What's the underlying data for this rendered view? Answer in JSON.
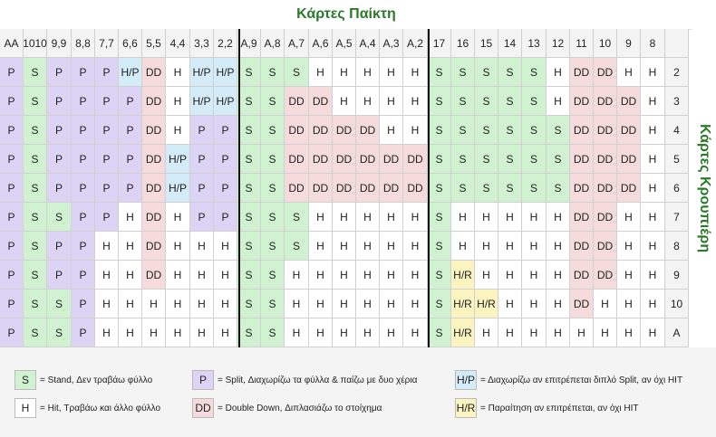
{
  "title": "Κάρτες Παίκτη",
  "side_title": "Κάρτες Κρουπιέρη",
  "player_headers": [
    "AA",
    "1010",
    "9,9",
    "8,8",
    "7,7",
    "6,6",
    "5,5",
    "4,4",
    "3,3",
    "2,2",
    "A,9",
    "A,8",
    "A,7",
    "A,6",
    "A,5",
    "A,4",
    "A,3",
    "A,2",
    "17",
    "16",
    "15",
    "14",
    "13",
    "12",
    "11",
    "10",
    "9",
    "8"
  ],
  "dealer_headers": [
    "2",
    "3",
    "4",
    "5",
    "6",
    "7",
    "8",
    "9",
    "10",
    "A"
  ],
  "rows": [
    [
      "P",
      "S",
      "P",
      "P",
      "P",
      "H/P",
      "DD",
      "H",
      "H/P",
      "H/P",
      "S",
      "S",
      "S",
      "H",
      "H",
      "H",
      "H",
      "H",
      "S",
      "S",
      "S",
      "S",
      "S",
      "H",
      "DD",
      "DD",
      "H",
      "H"
    ],
    [
      "P",
      "S",
      "P",
      "P",
      "P",
      "P",
      "DD",
      "H",
      "H/P",
      "H/P",
      "S",
      "S",
      "DD",
      "DD",
      "H",
      "H",
      "H",
      "H",
      "S",
      "S",
      "S",
      "S",
      "S",
      "H",
      "DD",
      "DD",
      "DD",
      "H"
    ],
    [
      "P",
      "S",
      "P",
      "P",
      "P",
      "P",
      "DD",
      "H",
      "P",
      "P",
      "S",
      "S",
      "DD",
      "DD",
      "DD",
      "DD",
      "H",
      "H",
      "S",
      "S",
      "S",
      "S",
      "S",
      "S",
      "DD",
      "DD",
      "DD",
      "H"
    ],
    [
      "P",
      "S",
      "P",
      "P",
      "P",
      "P",
      "DD",
      "H/P",
      "P",
      "P",
      "S",
      "S",
      "DD",
      "DD",
      "DD",
      "DD",
      "DD",
      "DD",
      "S",
      "S",
      "S",
      "S",
      "S",
      "S",
      "DD",
      "DD",
      "DD",
      "H"
    ],
    [
      "P",
      "S",
      "P",
      "P",
      "P",
      "P",
      "DD",
      "H/P",
      "P",
      "P",
      "S",
      "S",
      "DD",
      "DD",
      "DD",
      "DD",
      "DD",
      "DD",
      "S",
      "S",
      "S",
      "S",
      "S",
      "S",
      "DD",
      "DD",
      "DD",
      "H"
    ],
    [
      "P",
      "S",
      "S",
      "P",
      "P",
      "H",
      "DD",
      "H",
      "P",
      "P",
      "S",
      "S",
      "S",
      "H",
      "H",
      "H",
      "H",
      "H",
      "S",
      "H",
      "H",
      "H",
      "H",
      "H",
      "DD",
      "DD",
      "H",
      "H"
    ],
    [
      "P",
      "S",
      "P",
      "P",
      "H",
      "H",
      "DD",
      "H",
      "H",
      "H",
      "S",
      "S",
      "S",
      "H",
      "H",
      "H",
      "H",
      "H",
      "S",
      "H",
      "H",
      "H",
      "H",
      "H",
      "DD",
      "DD",
      "H",
      "H"
    ],
    [
      "P",
      "S",
      "P",
      "P",
      "H",
      "H",
      "DD",
      "H",
      "H",
      "H",
      "S",
      "S",
      "H",
      "H",
      "H",
      "H",
      "H",
      "H",
      "S",
      "H/R",
      "H",
      "H",
      "H",
      "H",
      "DD",
      "DD",
      "H",
      "H"
    ],
    [
      "P",
      "S",
      "S",
      "P",
      "H",
      "H",
      "H",
      "H",
      "H",
      "H",
      "S",
      "S",
      "H",
      "H",
      "H",
      "H",
      "H",
      "H",
      "S",
      "H/R",
      "H/R",
      "H",
      "H",
      "H",
      "DD",
      "H",
      "H",
      "H"
    ],
    [
      "P",
      "S",
      "S",
      "P",
      "H",
      "H",
      "H",
      "H",
      "H",
      "H",
      "S",
      "S",
      "H",
      "H",
      "H",
      "H",
      "H",
      "H",
      "S",
      "H/R",
      "H",
      "H",
      "H",
      "H",
      "H",
      "H",
      "H",
      "H"
    ]
  ],
  "legend": [
    {
      "code": "S",
      "text": "= Stand, Δεν τραβάω φύλλο"
    },
    {
      "code": "P",
      "text": "= Split, Διαχωρίζω τα φύλλα & παίζω με δυο χέρια"
    },
    {
      "code": "H/P",
      "text": "= Διαχωρίζω αν επιτρέπεται διπλό Split, αν όχι HIT"
    },
    {
      "code": "H",
      "text": "= Hit, Τραβάω και άλλο φύλλο"
    },
    {
      "code": "DD",
      "text": "= Double Down, Διπλασιάζω το στοίχημα"
    },
    {
      "code": "H/R",
      "text": "= Παραίτηση αν επιτρέπεται, αν όχι HIT"
    }
  ],
  "colors": {
    "S": "#d1f2d1",
    "P": "#ddd3f5",
    "H": "#ffffff",
    "DD": "#f5dbdb",
    "H/P": "#d3ecf8",
    "H/R": "#fbf3c0"
  }
}
